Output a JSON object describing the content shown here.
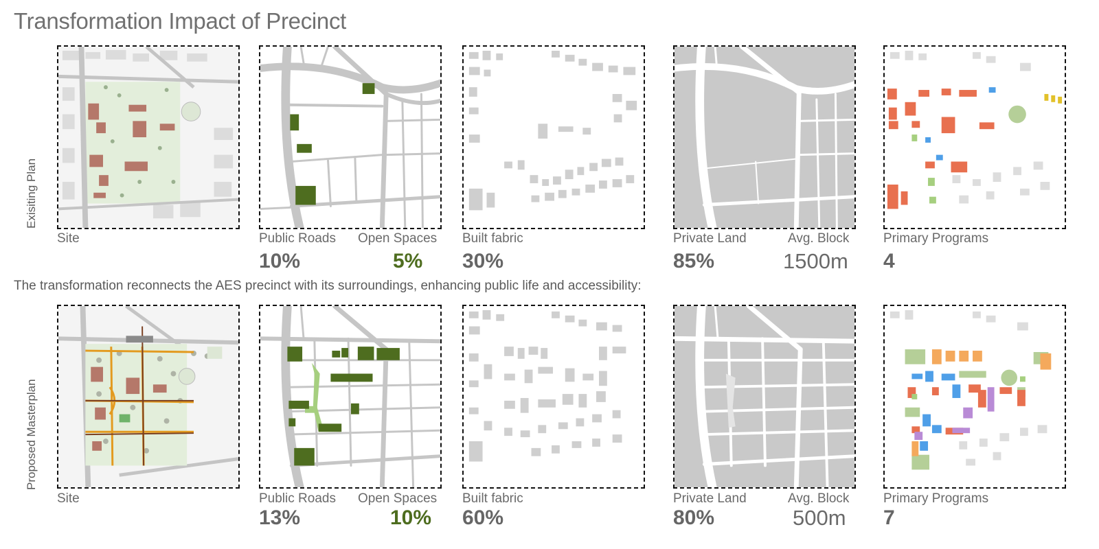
{
  "title": "Transformation Impact of Precinct",
  "caption": "The transformation reconnects the AES precinct with its surroundings, enhancing public life and accessibility:",
  "rows": [
    {
      "label": "Exisiting Plan",
      "site_label": "Site",
      "public_roads_label": "Public Roads",
      "public_roads_value": "10%",
      "open_spaces_label": "Open Spaces",
      "open_spaces_value": "5%",
      "built_fabric_label": "Built fabric",
      "built_fabric_value": "30%",
      "private_land_label": "Private Land",
      "private_land_value": "85%",
      "avg_block_label": "Avg. Block",
      "avg_block_value": "1500m",
      "primary_programs_label": "Primary Programs",
      "primary_programs_value": "4"
    },
    {
      "label": "Proposed Masterplan",
      "site_label": "Site",
      "public_roads_label": "Public Roads",
      "public_roads_value": "13%",
      "open_spaces_label": "Open Spaces",
      "open_spaces_value": "10%",
      "built_fabric_label": "Built fabric",
      "built_fabric_value": "60%",
      "private_land_label": "Private Land",
      "private_land_value": "80%",
      "avg_block_label": "Avg. Block",
      "avg_block_value": "500m",
      "primary_programs_label": "Primary Programs",
      "primary_programs_value": "7"
    }
  ],
  "colors": {
    "open_space_green": "#4e6d1f",
    "light_green": "#a6cf7f",
    "road_gray": "#c6c6c6",
    "building_gray": "#c9c9c9",
    "program_red": "#e8704f",
    "program_blue": "#4f9fe8",
    "program_orange": "#f4a95c",
    "program_purple": "#b98bd6",
    "program_sage": "#b5cf98",
    "program_yellow": "#e2c12a"
  }
}
